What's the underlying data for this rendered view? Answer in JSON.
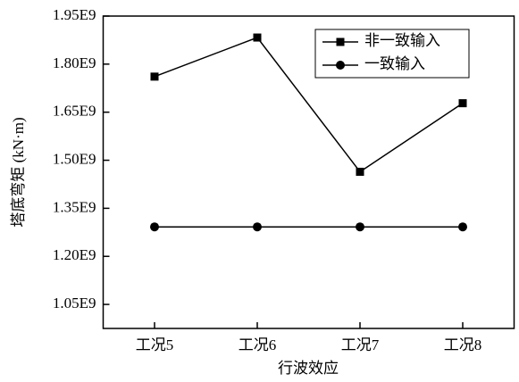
{
  "chart_data": {
    "type": "line",
    "x_label": "行波效应",
    "y_label": "塔底弯矩 (kN·m)",
    "categories": [
      "工况5",
      "工况6",
      "工况7",
      "工况8"
    ],
    "series": [
      {
        "name": "非一致输入",
        "color": "#000000",
        "marker": "square",
        "values": [
          1761000000,
          1883000000,
          1464000000,
          1678000000
        ]
      },
      {
        "name": "一致输入",
        "color": "#000000",
        "marker": "circle",
        "values": [
          1292000000,
          1292000000,
          1292000000,
          1292000000
        ]
      }
    ],
    "ylim": [
      975000000,
      1950000000
    ],
    "yticks": [
      {
        "value": 1050000000,
        "label": "1.05E9"
      },
      {
        "value": 1200000000,
        "label": "1.20E9"
      },
      {
        "value": 1350000000,
        "label": "1.35E9"
      },
      {
        "value": 1500000000,
        "label": "1.50E9"
      },
      {
        "value": 1650000000,
        "label": "1.65E9"
      },
      {
        "value": 1800000000,
        "label": "1.80E9"
      },
      {
        "value": 1950000000,
        "label": "1.95E9"
      }
    ],
    "legend": "upper right"
  }
}
